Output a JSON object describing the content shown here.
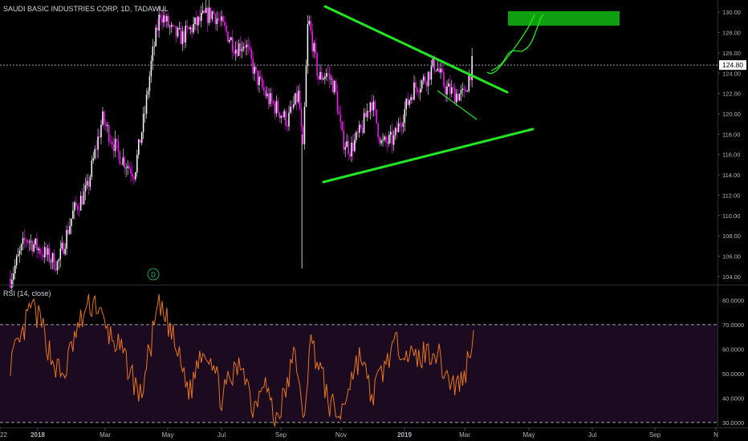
{
  "colors": {
    "background": "#000000",
    "price_up": "#ffffff",
    "price_down": "#ff19ff",
    "trendline": "#22e622",
    "target_box": "#0f9e0f",
    "rsi_line": "#e6761f",
    "rsi_band": "#1c0a20",
    "axis_text": "#b2b5be",
    "last_price_bg": "#ffffff"
  },
  "chart_data": [
    {
      "type": "candlestick",
      "title": "SAUDI BASIC INDUSTRIES CORP, 1D, TADAWUL",
      "ylim": [
        103.2,
        131.2
      ],
      "y_ticks": [
        "104.00",
        "106.00",
        "108.00",
        "110.00",
        "112.00",
        "114.00",
        "116.00",
        "118.00",
        "120.00",
        "122.00",
        "124.00",
        "126.00",
        "128.00",
        "130.00"
      ],
      "last_price": "124.80",
      "x_ticks": [
        "22",
        "2018",
        "Mar",
        "May",
        "Jul",
        "Sep",
        "Nov",
        "2019",
        "Mar",
        "May",
        "Jul",
        "Sep",
        "N"
      ],
      "trend_segment": {
        "x": [
          "2017-12-26",
          "2018-01-10",
          "2018-01-25",
          "2018-02-10",
          "2018-02-25",
          "2018-03-10",
          "2018-03-25",
          "2018-04-10",
          "2018-04-25",
          "2018-05-05",
          "2018-05-12",
          "2018-05-20",
          "2018-06-01",
          "2018-06-10",
          "2018-06-20",
          "2018-07-01",
          "2018-07-10",
          "2018-07-20",
          "2018-08-01",
          "2018-08-10",
          "2018-08-20",
          "2018-09-01",
          "2018-09-10",
          "2018-09-20",
          "2018-10-01",
          "2018-10-05",
          "2018-10-10",
          "2018-10-15",
          "2018-10-20",
          "2018-10-28",
          "2018-11-05",
          "2018-11-12",
          "2018-11-20",
          "2018-12-01",
          "2018-12-10",
          "2018-12-20",
          "2019-01-01",
          "2019-01-10",
          "2019-01-20",
          "2019-02-01",
          "2019-02-10",
          "2019-02-20",
          "2019-03-01",
          "2019-03-10",
          "2019-03-18"
        ],
        "y": [
          103.8,
          107.8,
          106.5,
          105.2,
          110.4,
          112.5,
          119.5,
          116.0,
          114.2,
          120.0,
          125.5,
          130.0,
          128.0,
          127.5,
          128.5,
          129.5,
          130.0,
          128.5,
          126.5,
          127.0,
          123.8,
          121.5,
          120.5,
          119.3,
          122.0,
          116.0,
          129.5,
          126.5,
          123.5,
          124.0,
          122.5,
          117.5,
          116.5,
          118.5,
          121.5,
          117.0,
          117.5,
          120.0,
          122.5,
          123.5,
          125.0,
          122.5,
          122.0,
          121.8,
          125.0
        ]
      },
      "annotations": [
        "D"
      ]
    },
    {
      "type": "line",
      "title": "RSI (14, close)",
      "ylim": [
        28,
        86
      ],
      "y_ticks": [
        "30.0000",
        "40.0000",
        "50.0000",
        "60.0000",
        "70.0000",
        "80.0000"
      ],
      "band": [
        30,
        70
      ],
      "trend_segment": {
        "x": [
          "2017-12-26",
          "2018-01-05",
          "2018-01-15",
          "2018-01-25",
          "2018-02-05",
          "2018-02-15",
          "2018-02-25",
          "2018-03-08",
          "2018-03-18",
          "2018-03-28",
          "2018-04-08",
          "2018-04-20",
          "2018-05-01",
          "2018-05-10",
          "2018-05-18",
          "2018-05-28",
          "2018-06-08",
          "2018-06-18",
          "2018-06-28",
          "2018-07-08",
          "2018-07-18",
          "2018-07-28",
          "2018-08-08",
          "2018-08-18",
          "2018-08-28",
          "2018-09-08",
          "2018-09-18",
          "2018-09-28",
          "2018-10-05",
          "2018-10-12",
          "2018-10-20",
          "2018-10-30",
          "2018-11-10",
          "2018-11-20",
          "2018-11-30",
          "2018-12-10",
          "2018-12-20",
          "2018-12-30",
          "2019-01-10",
          "2019-01-20",
          "2019-01-30",
          "2019-02-10",
          "2019-02-20",
          "2019-03-01",
          "2019-03-10",
          "2019-03-16",
          "2019-03-20"
        ],
        "y": [
          55,
          62,
          78,
          70,
          55,
          48,
          63,
          75,
          80,
          68,
          62,
          52,
          40,
          60,
          77,
          70,
          55,
          42,
          60,
          58,
          40,
          48,
          55,
          35,
          50,
          30,
          42,
          60,
          28,
          63,
          55,
          38,
          32,
          48,
          58,
          40,
          50,
          60,
          62,
          55,
          58,
          60,
          50,
          45,
          48,
          62,
          64
        ]
      }
    }
  ]
}
